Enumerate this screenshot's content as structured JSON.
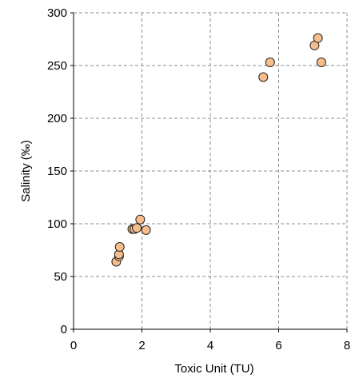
{
  "chart_data": {
    "type": "scatter",
    "title": "",
    "xlabel": "Toxic  Unit (TU)",
    "ylabel": "Salinity (‰)",
    "xlim": [
      0,
      8
    ],
    "ylim": [
      0,
      300
    ],
    "x_ticks": [
      "0",
      "2",
      "4",
      "6",
      "8"
    ],
    "y_ticks": [
      "0",
      "50",
      "100",
      "150",
      "200",
      "250",
      "300"
    ],
    "grid": true,
    "grid_style": "dashed",
    "legend": "none",
    "series": [
      {
        "points": [
          {
            "x": 1.25,
            "y": 64
          },
          {
            "x": 1.33,
            "y": 69
          },
          {
            "x": 1.33,
            "y": 71
          },
          {
            "x": 1.35,
            "y": 78
          },
          {
            "x": 1.72,
            "y": 95
          },
          {
            "x": 1.78,
            "y": 95
          },
          {
            "x": 1.85,
            "y": 96
          },
          {
            "x": 1.95,
            "y": 104
          },
          {
            "x": 2.12,
            "y": 94
          },
          {
            "x": 5.55,
            "y": 239
          },
          {
            "x": 5.75,
            "y": 253
          },
          {
            "x": 7.05,
            "y": 269
          },
          {
            "x": 7.15,
            "y": 276
          },
          {
            "x": 7.25,
            "y": 253
          }
        ]
      }
    ],
    "colors": {
      "marker_fill": "#F7BE8C",
      "marker_stroke": "#222222",
      "grid": "#8c8c8c",
      "axis": "#000000"
    }
  }
}
